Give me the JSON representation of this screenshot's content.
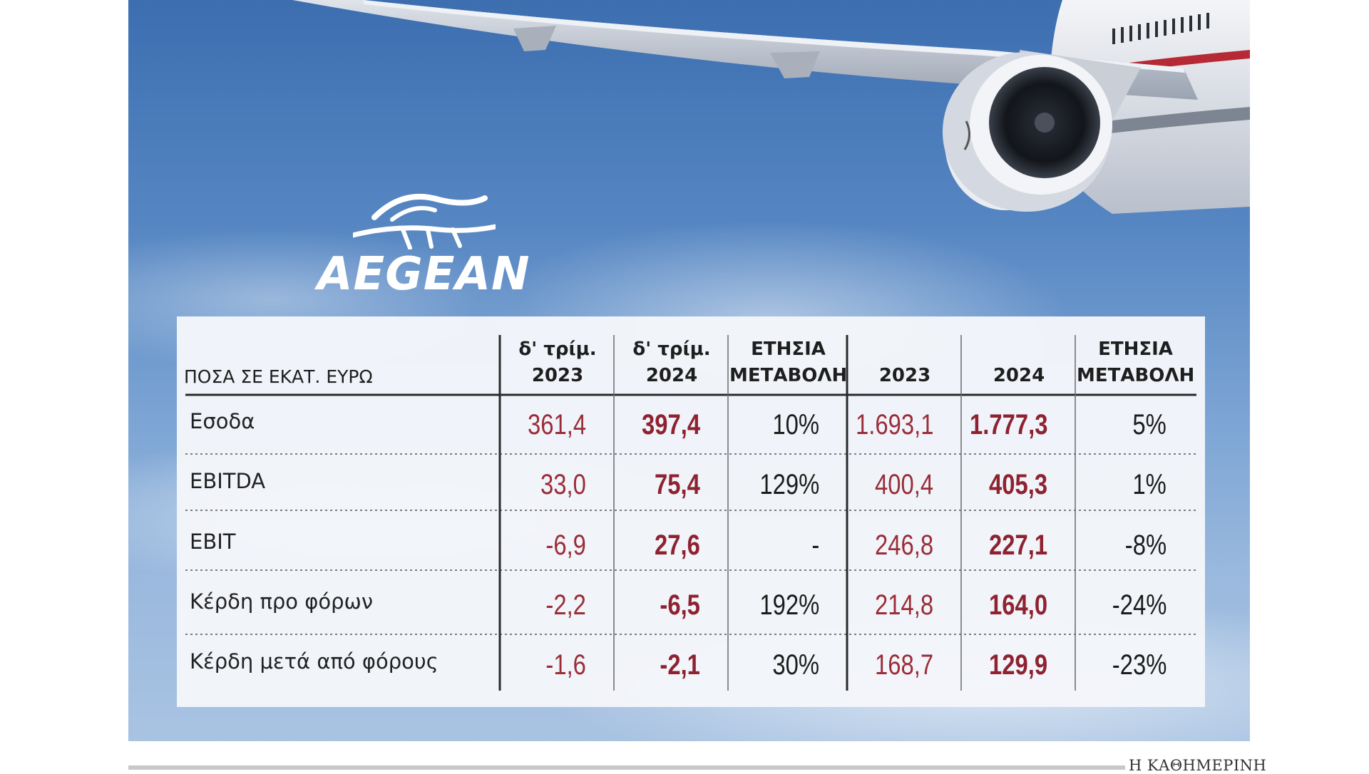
{
  "brand": {
    "name": "AEGEAN"
  },
  "table": {
    "header_left": "ΠΟΣΑ ΣΕ ΕΚΑΤ. ΕΥΡΩ",
    "columns": [
      {
        "line1": "δ' τρίμ.",
        "line2": "2023"
      },
      {
        "line1": "δ' τρίμ.",
        "line2": "2024"
      },
      {
        "line1": "ΕΤΗΣΙΑ",
        "line2": "ΜΕΤΑΒΟΛΗ"
      },
      {
        "line1": "",
        "line2": "2023"
      },
      {
        "line1": "",
        "line2": "2024"
      },
      {
        "line1": "ΕΤΗΣΙΑ",
        "line2": "ΜΕΤΑΒΟΛΗ"
      }
    ],
    "rows": [
      {
        "label": "Εσοδα",
        "values": [
          "361,4",
          "397,4",
          "10%",
          "1.693,1",
          "1.777,3",
          "5%"
        ]
      },
      {
        "label": "EBITDA",
        "values": [
          "33,0",
          "75,4",
          "129%",
          "400,4",
          "405,3",
          "1%"
        ]
      },
      {
        "label": "EBIT",
        "values": [
          "-6,9",
          "27,6",
          "-",
          "246,8",
          "227,1",
          "-8%"
        ]
      },
      {
        "label": "Κέρδη προ φόρων",
        "values": [
          "-2,2",
          "-6,5",
          "192%",
          "214,8",
          "164,0",
          "-24%"
        ]
      },
      {
        "label": "Κέρδη μετά από φόρους",
        "values": [
          "-1,6",
          "-2,1",
          "30%",
          "168,7",
          "129,9",
          "-23%"
        ]
      }
    ]
  },
  "credit": "Η ΚΑΘΗΜΕΡΙΝΗ",
  "colors": {
    "value_red": "#9a2d38",
    "value_red_bold": "#8e2230",
    "sky": "#5686c2"
  }
}
